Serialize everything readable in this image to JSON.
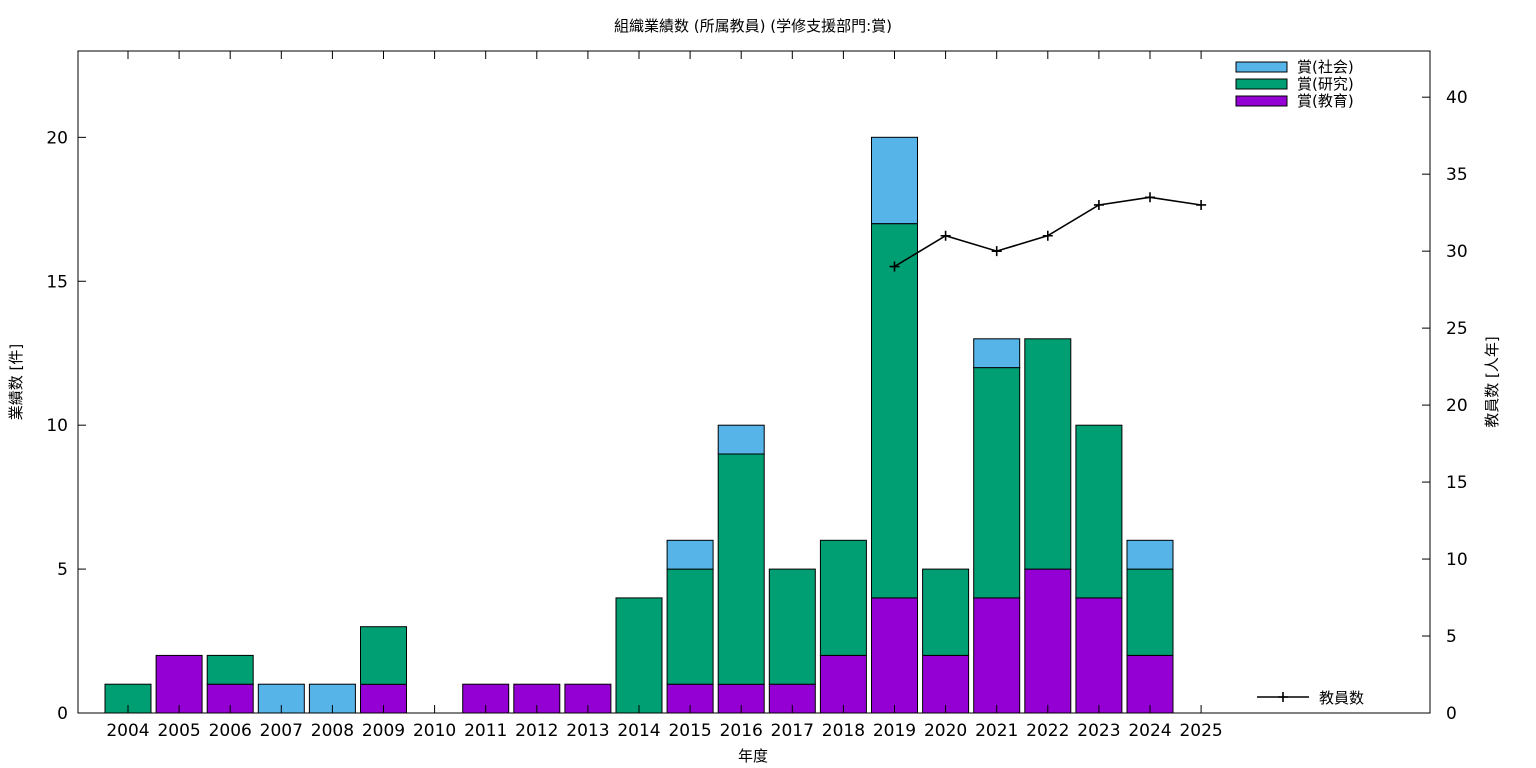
{
  "chart_data": {
    "type": "bar",
    "stacked": true,
    "title": "組織業績数 (所属教員) (学修支援部門:賞)",
    "xlabel": "年度",
    "ylabel": "業績数 [件]",
    "y2label": "教員数 [人年]",
    "ylim": [
      0,
      23
    ],
    "y2lim": [
      0,
      43
    ],
    "yticks": [
      "0",
      "5",
      "10",
      "15",
      "20"
    ],
    "y2ticks": [
      "0",
      "5",
      "10",
      "15",
      "20",
      "25",
      "30",
      "35",
      "40"
    ],
    "grid": false,
    "legend_position": "top-right",
    "categories": [
      "2004",
      "2005",
      "2006",
      "2007",
      "2008",
      "2009",
      "2010",
      "2011",
      "2012",
      "2013",
      "2014",
      "2015",
      "2016",
      "2017",
      "2018",
      "2019",
      "2020",
      "2021",
      "2022",
      "2023",
      "2024",
      "2025"
    ],
    "series": [
      {
        "name": "賞(教育)",
        "color": "#9400d3",
        "values": [
          0,
          2,
          1,
          0,
          0,
          1,
          0,
          1,
          1,
          1,
          0,
          1,
          1,
          1,
          2,
          4,
          2,
          4,
          5,
          4,
          2,
          0
        ]
      },
      {
        "name": "賞(研究)",
        "color": "#009e73",
        "values": [
          1,
          0,
          1,
          0,
          0,
          2,
          0,
          0,
          0,
          0,
          4,
          4,
          8,
          4,
          4,
          13,
          3,
          8,
          8,
          6,
          3,
          0
        ]
      },
      {
        "name": "賞(社会)",
        "color": "#56b4e9",
        "values": [
          0,
          0,
          0,
          1,
          1,
          0,
          0,
          0,
          0,
          0,
          0,
          1,
          1,
          0,
          0,
          3,
          0,
          1,
          0,
          0,
          1,
          0
        ]
      }
    ],
    "line_series": {
      "name": "教員数",
      "color": "#000000",
      "axis": "right",
      "x": [
        "2019",
        "2020",
        "2021",
        "2022",
        "2023",
        "2024",
        "2025"
      ],
      "values": [
        29,
        31,
        30,
        31,
        33,
        33.5,
        33
      ]
    }
  }
}
